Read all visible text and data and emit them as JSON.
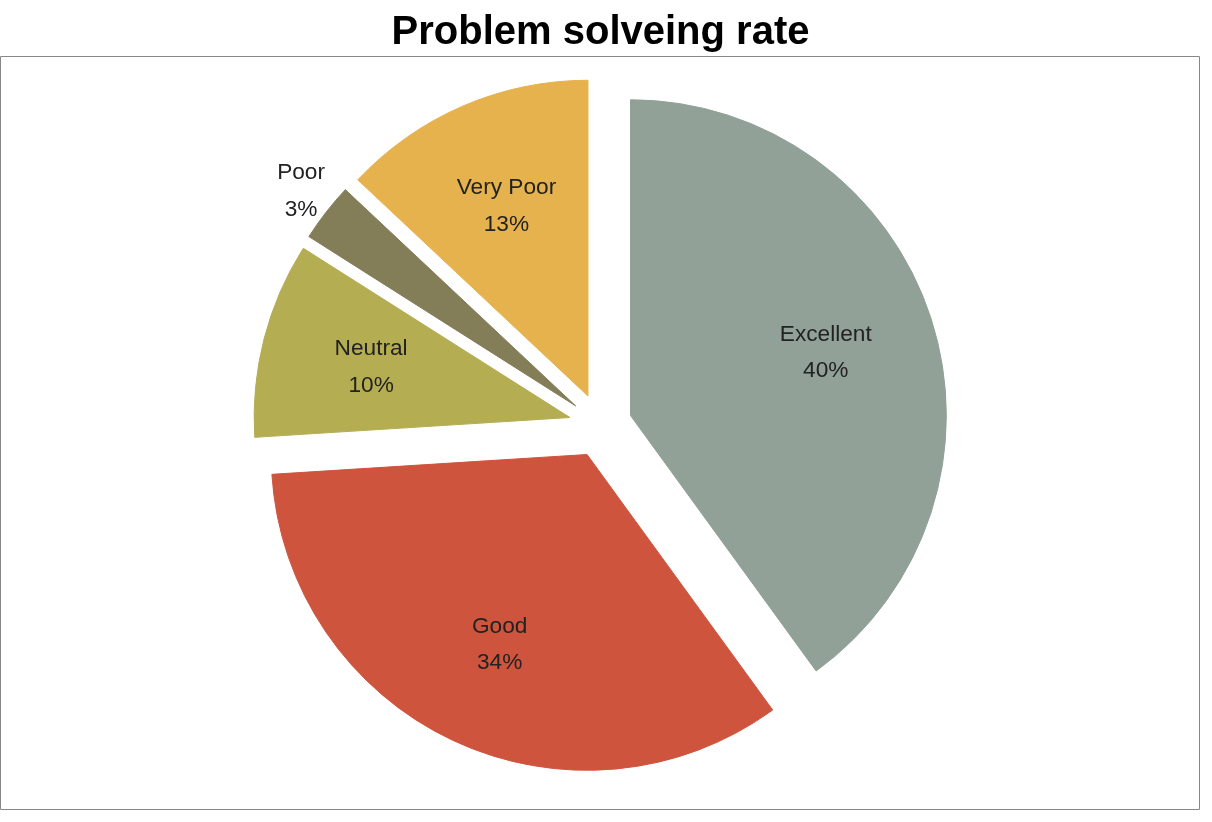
{
  "chart_data": {
    "type": "pie",
    "title": "Problem solveing rate",
    "categories": [
      "Excellent",
      "Good",
      "Neutral",
      "Poor",
      "Very Poor"
    ],
    "values": [
      40,
      34,
      10,
      3,
      13
    ],
    "value_labels": [
      "40%",
      "34%",
      "10%",
      "3%",
      "13%"
    ],
    "colors": [
      "#91a197",
      "#cf543d",
      "#b5ad52",
      "#837d58",
      "#e6b24d"
    ]
  }
}
